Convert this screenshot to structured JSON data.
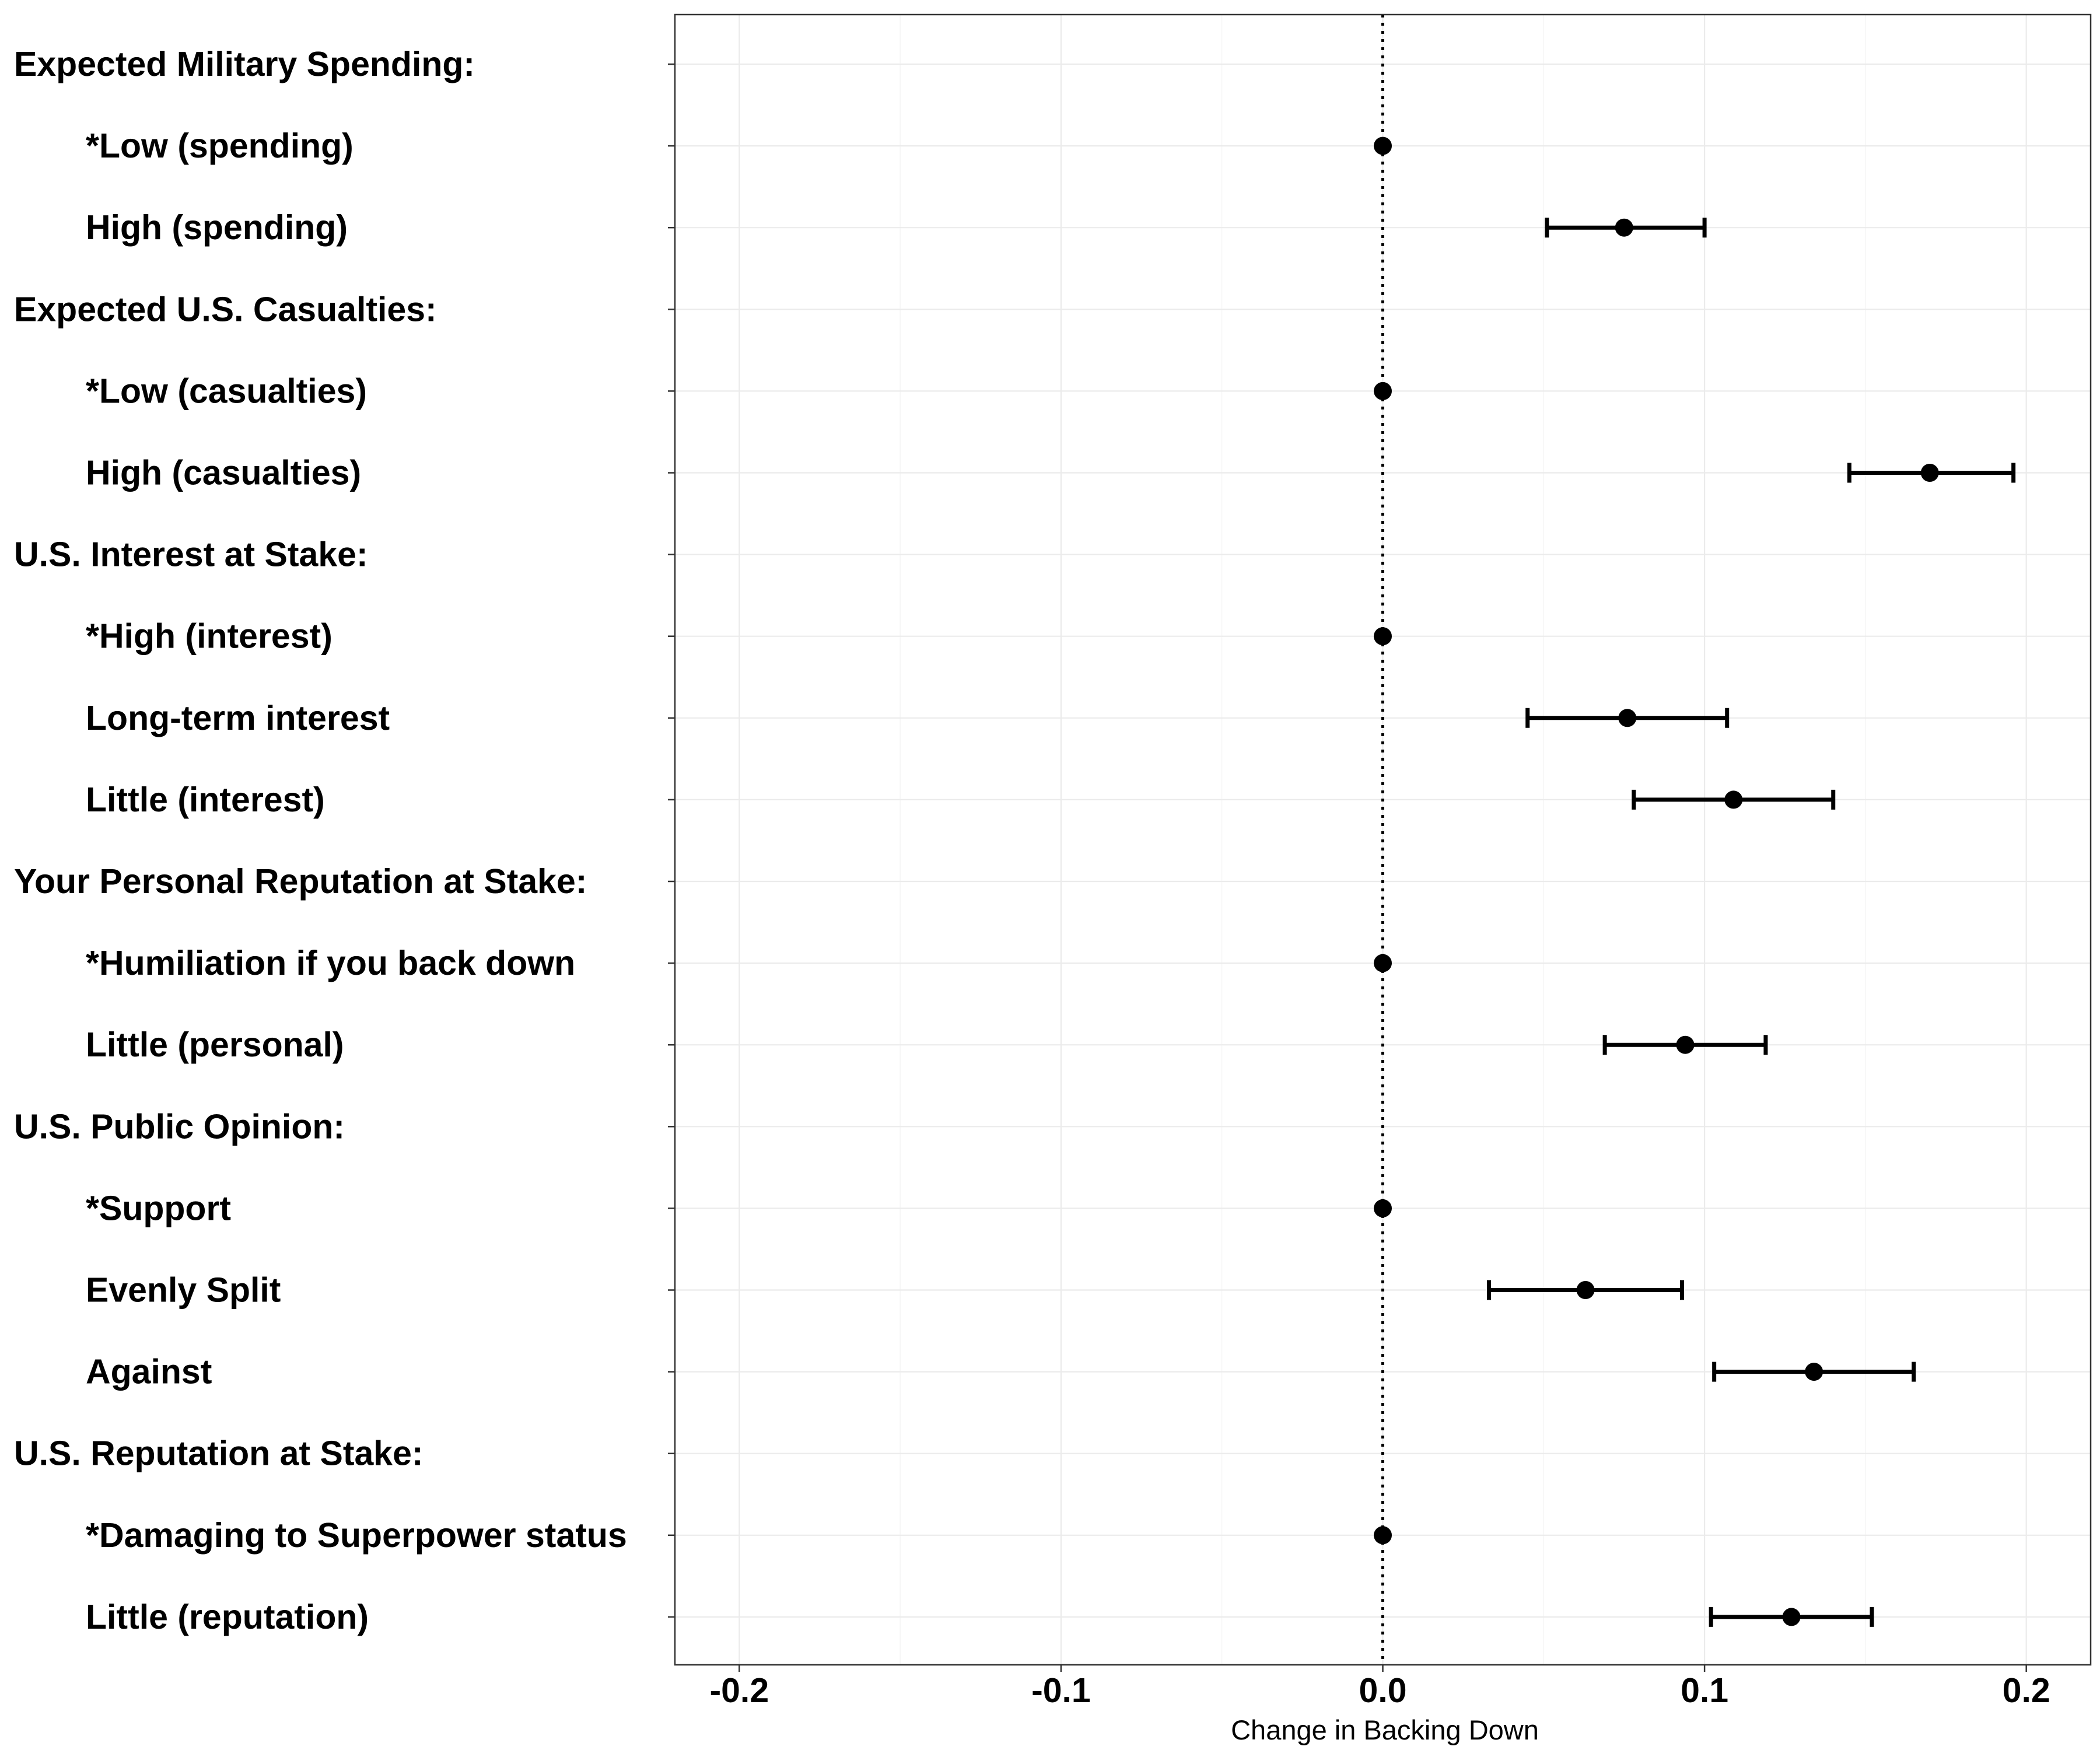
{
  "chart_data": {
    "type": "scatter",
    "subtype": "coefficient-plot",
    "title": "",
    "xlabel": "Change in Backing Down",
    "ylabel": "",
    "xlim": [
      -0.22,
      0.22
    ],
    "x_ticks": [
      -0.2,
      -0.1,
      0.0,
      0.1,
      0.2
    ],
    "x_tick_labels": [
      "-0.2",
      "-0.1",
      "0.0",
      "0.1",
      "0.2"
    ],
    "grid": true,
    "reference_line": 0.0,
    "colors": {
      "point": "#000000",
      "grid": "#ebebeb",
      "panel_border": "#333333"
    },
    "rows": [
      {
        "label": "Expected Military Spending:",
        "indent": false,
        "header": true,
        "estimate": null,
        "lower": null,
        "upper": null
      },
      {
        "label": "*Low (spending)",
        "indent": true,
        "header": false,
        "estimate": 0.0,
        "lower": 0.0,
        "upper": 0.0
      },
      {
        "label": "High (spending)",
        "indent": true,
        "header": false,
        "estimate": 0.075,
        "lower": 0.051,
        "upper": 0.1
      },
      {
        "label": "Expected U.S. Casualties:",
        "indent": false,
        "header": true,
        "estimate": null,
        "lower": null,
        "upper": null
      },
      {
        "label": "*Low (casualties)",
        "indent": true,
        "header": false,
        "estimate": 0.0,
        "lower": 0.0,
        "upper": 0.0
      },
      {
        "label": "High (casualties)",
        "indent": true,
        "header": false,
        "estimate": 0.17,
        "lower": 0.145,
        "upper": 0.196
      },
      {
        "label": "U.S. Interest at Stake:",
        "indent": false,
        "header": true,
        "estimate": null,
        "lower": null,
        "upper": null
      },
      {
        "label": "*High (interest)",
        "indent": true,
        "header": false,
        "estimate": 0.0,
        "lower": 0.0,
        "upper": 0.0
      },
      {
        "label": "Long-term interest",
        "indent": true,
        "header": false,
        "estimate": 0.076,
        "lower": 0.045,
        "upper": 0.107
      },
      {
        "label": "Little (interest)",
        "indent": true,
        "header": false,
        "estimate": 0.109,
        "lower": 0.078,
        "upper": 0.14
      },
      {
        "label": "Your Personal Reputation at Stake:",
        "indent": false,
        "header": true,
        "estimate": null,
        "lower": null,
        "upper": null
      },
      {
        "label": "*Humiliation if you back down",
        "indent": true,
        "header": false,
        "estimate": 0.0,
        "lower": 0.0,
        "upper": 0.0
      },
      {
        "label": "Little (personal)",
        "indent": true,
        "header": false,
        "estimate": 0.094,
        "lower": 0.069,
        "upper": 0.119
      },
      {
        "label": "U.S. Public Opinion:",
        "indent": false,
        "header": true,
        "estimate": null,
        "lower": null,
        "upper": null
      },
      {
        "label": "*Support",
        "indent": true,
        "header": false,
        "estimate": 0.0,
        "lower": 0.0,
        "upper": 0.0
      },
      {
        "label": "Evenly Split",
        "indent": true,
        "header": false,
        "estimate": 0.063,
        "lower": 0.033,
        "upper": 0.093
      },
      {
        "label": "Against",
        "indent": true,
        "header": false,
        "estimate": 0.134,
        "lower": 0.103,
        "upper": 0.165
      },
      {
        "label": "U.S. Reputation at Stake:",
        "indent": false,
        "header": true,
        "estimate": null,
        "lower": null,
        "upper": null
      },
      {
        "label": "*Damaging to Superpower status",
        "indent": true,
        "header": false,
        "estimate": 0.0,
        "lower": 0.0,
        "upper": 0.0
      },
      {
        "label": "Little (reputation)",
        "indent": true,
        "header": false,
        "estimate": 0.127,
        "lower": 0.102,
        "upper": 0.152
      }
    ]
  }
}
